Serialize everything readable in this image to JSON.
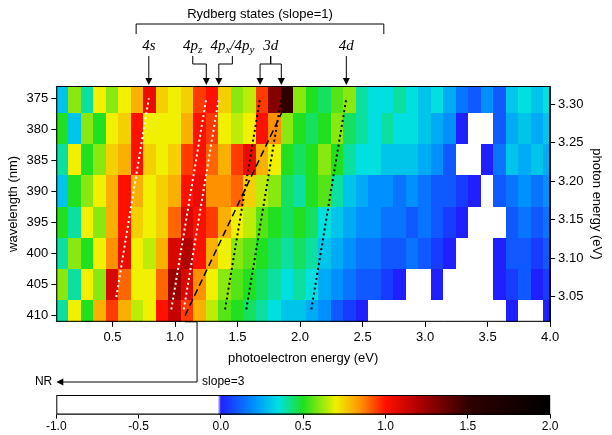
{
  "chart_data": {
    "type": "heatmap",
    "x_label": "photoelectron energy (eV)",
    "y_label": "wavelength (nm)",
    "y2_label": "photon energy (eV)",
    "xlim": [
      0.05,
      4.0
    ],
    "xticks": [
      0.5,
      {
        "value": 1,
        "label": "1.0"
      },
      1.5,
      {
        "value": 2,
        "label": "2.0"
      },
      2.5,
      {
        "value": 3,
        "label": "3.0"
      },
      3.5,
      {
        "value": 4,
        "label": "4.0"
      }
    ],
    "ylim": [
      373,
      411
    ],
    "yticks": [
      375,
      380,
      385,
      390,
      395,
      400,
      405,
      410
    ],
    "y2lim": [
      3.017,
      3.324
    ],
    "y2ticks": [
      3.05,
      {
        "value": 3.1,
        "label": "3.10"
      },
      3.15,
      {
        "value": 3.2,
        "label": "3.20"
      },
      3.25,
      {
        "value": 3.3,
        "label": "3.30"
      }
    ],
    "grid": false,
    "x": [
      0.1,
      0.2,
      0.3,
      0.4,
      0.5,
      0.6,
      0.7,
      0.8,
      0.9,
      1.0,
      1.1,
      1.2,
      1.3,
      1.4,
      1.5,
      1.6,
      1.7,
      1.8,
      1.9,
      2.0,
      2.1,
      2.2,
      2.3,
      2.4,
      2.5,
      2.6,
      2.7,
      2.8,
      2.9,
      3.0,
      3.1,
      3.2,
      3.3,
      3.4,
      3.5,
      3.6,
      3.7,
      3.8,
      3.9,
      4.0
    ],
    "y": [
      375,
      380,
      385,
      390,
      395,
      400,
      405,
      410
    ],
    "z": [
      [
        0.3,
        0.6,
        0.4,
        0.7,
        0.6,
        0.7,
        0.8,
        1.05,
        0.75,
        0.7,
        0.75,
        0.95,
        1.0,
        0.75,
        0.6,
        0.65,
        0.95,
        1.3,
        1.5,
        0.6,
        0.5,
        0.45,
        0.55,
        0.6,
        0.4,
        0.35,
        0.35,
        0.4,
        0.35,
        0.3,
        0.35,
        0.25,
        0.15,
        0.1,
        0.2,
        0.1,
        0.3,
        0.35,
        0.3,
        0.35
      ],
      [
        0.5,
        0.3,
        0.6,
        0.5,
        0.7,
        0.75,
        1.0,
        0.7,
        0.7,
        0.7,
        0.8,
        1.0,
        0.95,
        0.7,
        0.65,
        0.7,
        1.0,
        0.85,
        0.6,
        0.5,
        0.45,
        0.5,
        0.6,
        0.45,
        0.4,
        0.35,
        0.4,
        0.35,
        0.35,
        0.3,
        0.25,
        0.2,
        0.0,
        -0.3,
        -0.1,
        0.1,
        0.25,
        0.3,
        0.25,
        0.3
      ],
      [
        0.4,
        0.7,
        0.5,
        0.6,
        0.75,
        0.8,
        1.0,
        0.75,
        0.7,
        0.75,
        0.95,
        1.0,
        0.9,
        0.8,
        0.95,
        1.05,
        0.8,
        0.7,
        0.5,
        0.45,
        0.5,
        0.6,
        0.5,
        0.4,
        0.35,
        0.35,
        0.3,
        0.3,
        0.3,
        0.25,
        0.2,
        0.1,
        -0.2,
        -0.4,
        0.0,
        0.15,
        0.3,
        0.25,
        0.3,
        0.25
      ],
      [
        0.3,
        0.5,
        0.6,
        0.7,
        0.8,
        1.0,
        0.8,
        0.7,
        0.75,
        0.8,
        1.0,
        1.05,
        0.85,
        0.85,
        0.9,
        0.75,
        0.65,
        0.6,
        0.45,
        0.4,
        0.5,
        0.55,
        0.4,
        0.3,
        0.25,
        0.2,
        0.2,
        0.15,
        0.2,
        0.15,
        0.1,
        0.1,
        0.05,
        0.0,
        -0.1,
        0.1,
        0.15,
        0.2,
        0.15,
        0.2
      ],
      [
        0.5,
        0.4,
        0.7,
        0.6,
        0.8,
        1.0,
        0.75,
        0.7,
        0.75,
        0.9,
        1.1,
        1.0,
        0.95,
        0.8,
        0.7,
        0.65,
        0.55,
        0.5,
        0.45,
        0.5,
        0.45,
        0.35,
        0.3,
        0.25,
        0.2,
        0.2,
        0.15,
        0.15,
        0.1,
        0.15,
        0.1,
        0.05,
        0.0,
        -0.3,
        -0.5,
        -0.1,
        0.1,
        0.15,
        0.1,
        0.15
      ],
      [
        0.4,
        0.6,
        0.5,
        0.7,
        0.85,
        1.05,
        0.7,
        0.65,
        0.8,
        1.1,
        1.2,
        1.0,
        0.8,
        0.7,
        0.6,
        0.55,
        0.5,
        0.45,
        0.4,
        0.45,
        0.4,
        0.3,
        0.25,
        0.2,
        0.15,
        0.15,
        0.1,
        0.1,
        0.15,
        0.1,
        0.05,
        0.0,
        -0.2,
        -0.6,
        -0.4,
        0.0,
        0.1,
        0.1,
        0.05,
        0.1
      ],
      [
        0.6,
        0.4,
        0.7,
        0.6,
        1.1,
        0.9,
        0.7,
        0.7,
        0.9,
        1.25,
        1.1,
        0.85,
        0.7,
        0.6,
        0.55,
        0.5,
        0.45,
        0.4,
        0.35,
        0.4,
        0.35,
        0.25,
        0.2,
        0.15,
        0.1,
        0.1,
        0.05,
        0.0,
        -0.1,
        -0.3,
        0.0,
        -0.2,
        -0.5,
        -0.7,
        -0.3,
        0.0,
        0.05,
        0.1,
        0.0,
        0.05
      ],
      [
        0.4,
        0.7,
        0.5,
        0.8,
        0.95,
        0.8,
        0.65,
        0.7,
        1.0,
        1.15,
        0.95,
        0.8,
        0.65,
        0.55,
        0.5,
        0.45,
        0.4,
        0.35,
        0.3,
        0.3,
        0.25,
        0.2,
        0.1,
        0.05,
        0.0,
        -0.2,
        -0.4,
        -0.2,
        -0.3,
        -0.5,
        -0.2,
        -0.4,
        -0.6,
        -0.8,
        -0.5,
        -0.2,
        0.0,
        -0.1,
        -0.2,
        0.0
      ]
    ],
    "colorbar": {
      "range": [
        -1,
        2
      ],
      "ticks": [
        {
          "value": -1,
          "label": "-1.0"
        },
        -0.5,
        {
          "value": 0,
          "label": "0.0"
        },
        0.5,
        {
          "value": 1,
          "label": "1.0"
        },
        1.5,
        {
          "value": 2,
          "label": "2.0"
        }
      ]
    },
    "series": [
      {
        "name": "4s",
        "color": "#ffffff",
        "line_style": "dotted",
        "x": [
          0.53,
          0.79
        ],
        "values": [
          407,
          375
        ]
      },
      {
        "name": "4pz",
        "color": "#ffffff",
        "line_style": "dotted",
        "x": [
          0.97,
          1.25
        ],
        "values": [
          409,
          375
        ]
      },
      {
        "name": "4px/4py",
        "color": "#ffffff",
        "line_style": "dotted",
        "x": [
          1.07,
          1.35
        ],
        "values": [
          409,
          375
        ]
      },
      {
        "name": "3d",
        "color": "#000000",
        "line_style": "dotted",
        "x": [
          1.4,
          1.68
        ],
        "values": [
          409,
          375
        ]
      },
      {
        "name": "3d",
        "color": "#000000",
        "line_style": "dotted",
        "x": [
          1.57,
          1.85
        ],
        "values": [
          409,
          375
        ]
      },
      {
        "name": "4d",
        "color": "#000000",
        "line_style": "dotted",
        "x": [
          2.09,
          2.37
        ],
        "values": [
          409,
          375
        ]
      },
      {
        "name": "NR",
        "color": "#000000",
        "line_style": "dashed",
        "x": [
          1.08,
          1.86
        ],
        "values": [
          410,
          377
        ]
      }
    ],
    "annotations": [
      {
        "text": "Rydberg states (slope=1)",
        "series": [
          "4s",
          "4pz",
          "4px/4py",
          "3d",
          "4d"
        ]
      },
      {
        "text": "slope=3",
        "series": [
          "NR"
        ]
      }
    ]
  }
}
